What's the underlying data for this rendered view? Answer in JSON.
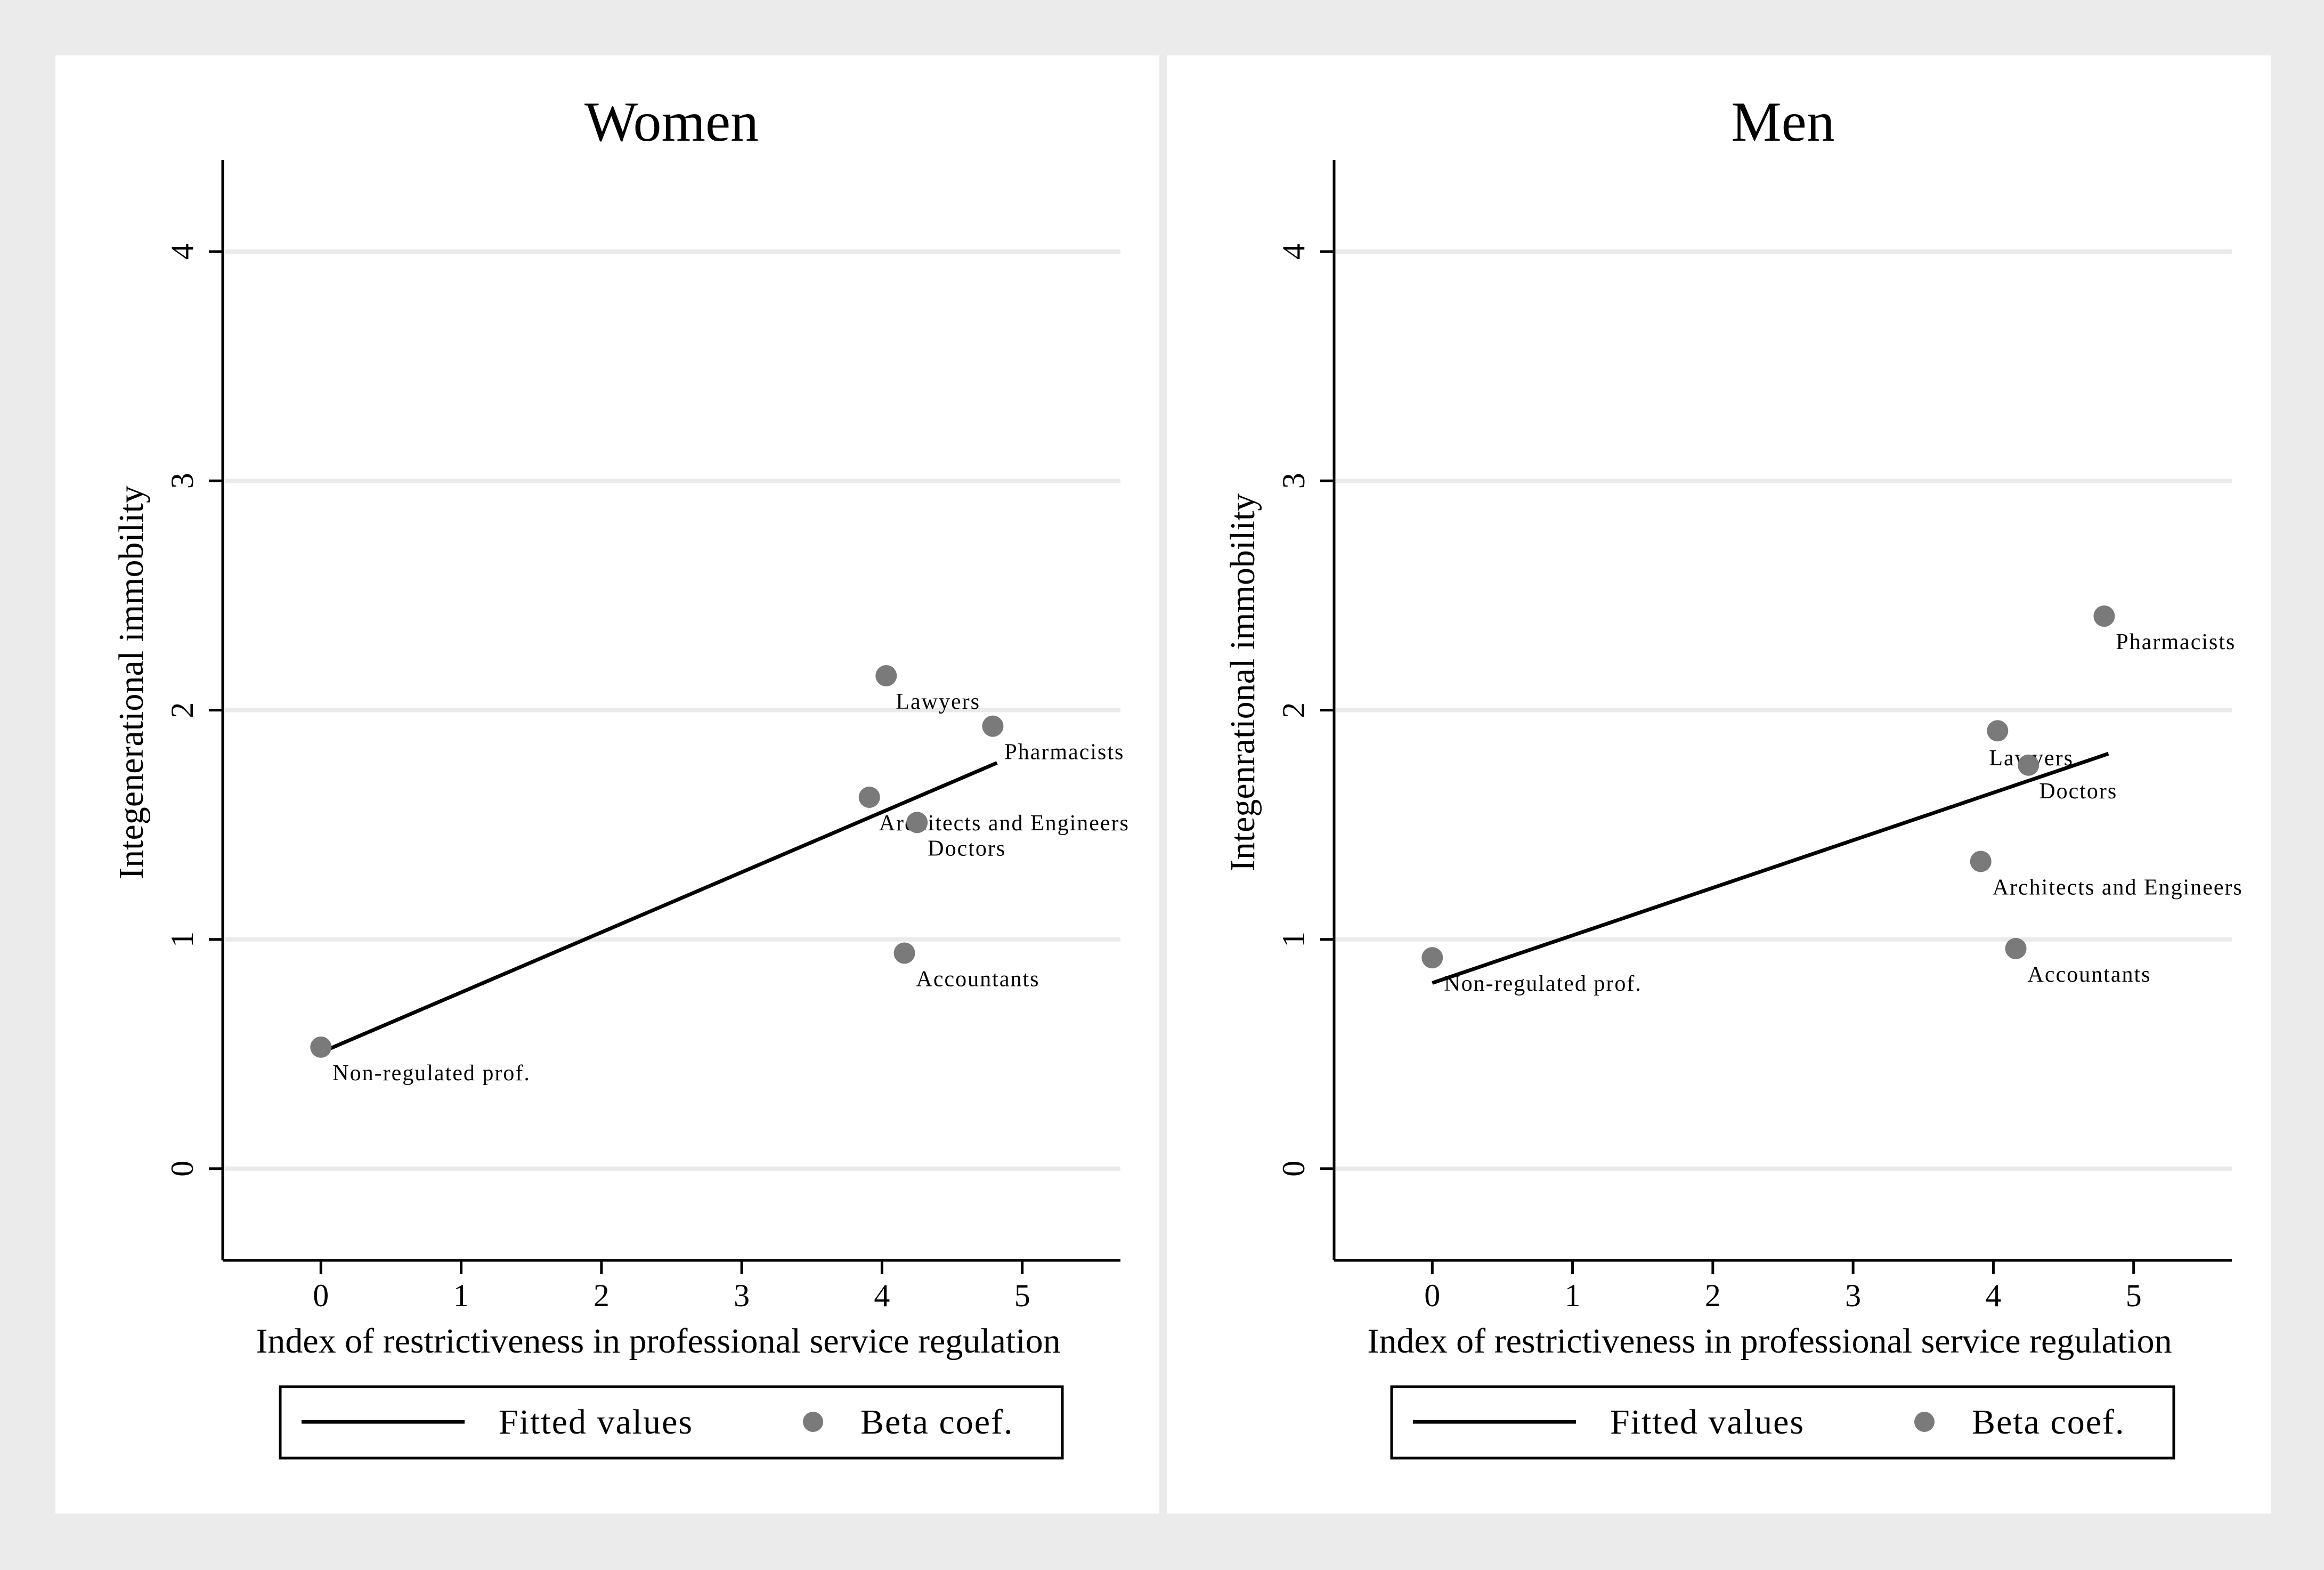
{
  "chart_data": [
    {
      "type": "scatter",
      "title": "Women",
      "xlabel": "Index of restrictiveness in professional service regulation",
      "ylabel": "Integenerational immobility",
      "xlim": [
        -0.7,
        5.7
      ],
      "ylim": [
        -0.4,
        4.4
      ],
      "xticks": [
        0,
        1,
        2,
        3,
        4,
        5
      ],
      "yticks": [
        0,
        1,
        2,
        3,
        4
      ],
      "series": [
        {
          "name": "Beta coef.",
          "kind": "scatter",
          "points": [
            {
              "label": "Non-regulated prof.",
              "x": 0,
              "y": 0.53
            },
            {
              "label": "Lawyers",
              "x": 4.03,
              "y": 2.15
            },
            {
              "label": "Pharmacists",
              "x": 4.79,
              "y": 1.93
            },
            {
              "label": "Architects and Engineers",
              "x": 3.91,
              "y": 1.62
            },
            {
              "label": "Doctors",
              "x": 4.25,
              "y": 1.51
            },
            {
              "label": "Accountants",
              "x": 4.16,
              "y": 0.94
            }
          ]
        },
        {
          "name": "Fitted values",
          "kind": "line",
          "x": [
            0.05,
            4.82
          ],
          "y": [
            0.52,
            1.77
          ]
        }
      ],
      "legend": [
        "Fitted values",
        "Beta coef."
      ]
    },
    {
      "type": "scatter",
      "title": "Men",
      "xlabel": "Index of restrictiveness in professional service regulation",
      "ylabel": "Integenrational immobility",
      "xlim": [
        -0.7,
        5.7
      ],
      "ylim": [
        -0.4,
        4.4
      ],
      "xticks": [
        0,
        1,
        2,
        3,
        4,
        5
      ],
      "yticks": [
        0,
        1,
        2,
        3,
        4
      ],
      "series": [
        {
          "name": "Beta coef.",
          "kind": "scatter",
          "points": [
            {
              "label": "Non-regulated prof.",
              "x": 0,
              "y": 0.92
            },
            {
              "label": "Pharmacists",
              "x": 4.79,
              "y": 2.41
            },
            {
              "label": "Lawyers",
              "x": 4.03,
              "y": 1.91
            },
            {
              "label": "Doctors",
              "x": 4.25,
              "y": 1.76
            },
            {
              "label": "Architects and Engineers",
              "x": 3.91,
              "y": 1.34
            },
            {
              "label": "Accountants",
              "x": 4.16,
              "y": 0.96
            }
          ]
        },
        {
          "name": "Fitted values",
          "kind": "line",
          "x": [
            0.0,
            4.82
          ],
          "y": [
            0.81,
            1.81
          ]
        }
      ],
      "legend": [
        "Fitted values",
        "Beta coef."
      ]
    }
  ]
}
